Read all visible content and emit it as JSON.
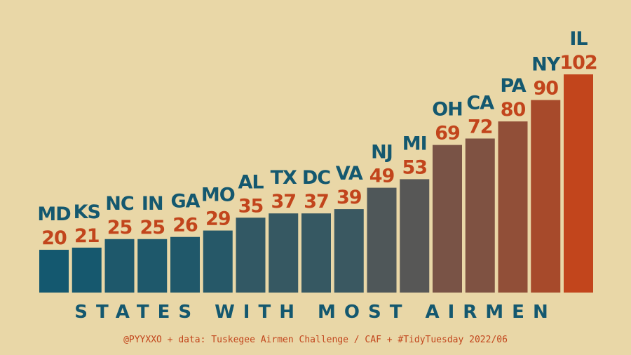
{
  "chart_data": {
    "type": "bar",
    "title": "STATES WITH MOST AIRMEN",
    "caption": "@PYYXXO + data: Tuskegee Airmen Challenge / CAF + #TidyTuesday 2022/06",
    "categories": [
      "MD",
      "KS",
      "NC",
      "IN",
      "GA",
      "MO",
      "AL",
      "TX",
      "DC",
      "VA",
      "NJ",
      "MI",
      "OH",
      "CA",
      "PA",
      "NY",
      "IL"
    ],
    "values": [
      20,
      21,
      25,
      25,
      26,
      29,
      35,
      37,
      37,
      39,
      49,
      53,
      69,
      72,
      80,
      90,
      102
    ],
    "ylim": [
      0,
      102
    ],
    "grid": false,
    "legend": "none",
    "colors": {
      "background": "#e9d7a7",
      "low": "#14586f",
      "mid": "#675750",
      "high": "#c2451c",
      "state_label": "#14586f",
      "value_label": "#c2451c"
    }
  }
}
